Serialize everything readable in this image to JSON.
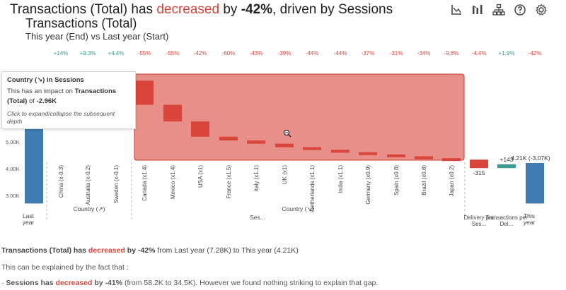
{
  "headline": {
    "prefix": "Transactions (Total) has ",
    "verb": "decreased",
    "mid": " by ",
    "pct": "-42%",
    "suffix": ", driven by Sessions"
  },
  "chart_title": "Transactions (Total)",
  "chart_subtitle": "This year (End) vs Last year (Start)",
  "toolbar": [
    "chart-icon",
    "bar-compare-icon",
    "hierarchy-icon",
    "help-icon",
    "gear-icon"
  ],
  "tooltip": {
    "line1_a": "Country (↘) in ",
    "line1_b": "Sessions",
    "line2_a": "This has an impact on ",
    "line2_b": "Transactions (Total)",
    "line2_c": " of ",
    "line2_d": "-2.96K",
    "line3": "Click to expand/collapse the subsequent depth"
  },
  "chart_data": {
    "type": "waterfall",
    "y_ticks": [
      "3.00K",
      "4.00K",
      "5.00K"
    ],
    "y_ticks_hidden_top": "...",
    "steps": [
      {
        "label": "Last year",
        "kind": "total",
        "value": 7280,
        "pct": "",
        "value_label": ""
      },
      {
        "label": "China (x-0.3)",
        "kind": "delta",
        "pct": "+14%",
        "change": 0,
        "value_label": ""
      },
      {
        "label": "Australia (x-0.2)",
        "kind": "delta",
        "pct": "+9.3%",
        "change": 0,
        "value_label": ""
      },
      {
        "label": "Sweden (x-0.1)",
        "kind": "delta",
        "pct": "+4.4%",
        "change": 0,
        "value_label": ""
      },
      {
        "label": "Canada (x1.4)",
        "kind": "delta",
        "pct": "-55%",
        "change": -900,
        "value_label": ""
      },
      {
        "label": "Mexico (x1.4)",
        "kind": "delta",
        "pct": "-55%",
        "change": -620,
        "value_label": ""
      },
      {
        "label": "USA (x1)",
        "kind": "delta",
        "pct": "-42%",
        "change": -570,
        "value_label": ""
      },
      {
        "label": "France (x1.5)",
        "kind": "delta",
        "pct": "-60%",
        "change": -140,
        "value_label": ""
      },
      {
        "label": "Italy (x1.1)",
        "kind": "delta",
        "pct": "-43%",
        "change": -120,
        "value_label": ""
      },
      {
        "label": "UK (x1)",
        "kind": "delta",
        "pct": "-39%",
        "change": -130,
        "value_label": ""
      },
      {
        "label": "Netherlands (x1.1)",
        "kind": "delta",
        "pct": "-44%",
        "change": -100,
        "value_label": ""
      },
      {
        "label": "India (x1.1)",
        "kind": "delta",
        "pct": "-44%",
        "change": -90,
        "value_label": ""
      },
      {
        "label": "Germany (x0.9)",
        "kind": "delta",
        "pct": "-37%",
        "change": -80,
        "value_label": ""
      },
      {
        "label": "Spain (x0.8)",
        "kind": "delta",
        "pct": "-31%",
        "change": -70,
        "value_label": ""
      },
      {
        "label": "Brazil (x0.8)",
        "kind": "delta",
        "pct": "-34%",
        "change": -70,
        "value_label": ""
      },
      {
        "label": "Japan (x0.2)",
        "kind": "delta",
        "pct": "-9.8%",
        "change": -55,
        "value_label": ""
      },
      {
        "label": "Delivery per Ses...",
        "kind": "delta",
        "pct": "-4.4%",
        "change": -315,
        "value_label": "-315"
      },
      {
        "label": "Transactions per Del...",
        "kind": "delta",
        "pct": "+1.9%",
        "change": 143,
        "value_label": "+143"
      },
      {
        "label": "This year",
        "kind": "total",
        "value": 4210,
        "pct": "-42%",
        "value_label": "4.21K (-3.07K)"
      }
    ],
    "groups": [
      {
        "name": "Country (↗)",
        "from": 1,
        "to": 3
      },
      {
        "name": "Ses...",
        "from": 1,
        "to": 15
      },
      {
        "name": "Country (↘)",
        "from": 4,
        "to": 15
      }
    ],
    "colors": {
      "total": "#3e7cb1",
      "decrease": "#d9453a",
      "increase": "#3a9a92",
      "highlight": "#d9453a"
    }
  },
  "summary": {
    "a": "Transactions (Total) has ",
    "b": "decreased",
    "c": " by ",
    "d": "-42%",
    "e": " from Last year (7.28K) to This year (4.21K)"
  },
  "explain": "This can be explained by the fact that :",
  "bullet": {
    "a": "· ",
    "b": "Sessions has ",
    "c": "decreased",
    "d": " by ",
    "e": "-41%",
    "f": " (from 58.2K to 34.5K). However we found nothing striking to explain that gap."
  }
}
